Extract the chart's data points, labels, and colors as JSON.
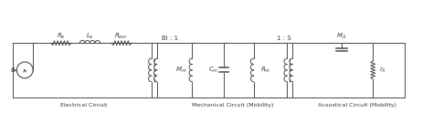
{
  "bg_color": "#ffffff",
  "line_color": "#4a4a4a",
  "text_color": "#3a3a3a",
  "labels": {
    "Re": "$R_e$",
    "Le": "$L_e$",
    "Rexc": "$R_{exc}$",
    "Bl1": "Bl : 1",
    "1S": "1 : S",
    "MA": "$M_A$",
    "Mm": "$M_m$",
    "Cm": "$C_m$",
    "Rm": "$R_m$",
    "rA": "$r_A$",
    "e": "e",
    "elec": "Electrical Circuit",
    "mech": "Mechanical Circuit (Mobility)",
    "acou": "Acoustical Circuit (Mobility)"
  },
  "figsize": [
    4.74,
    1.35
  ],
  "dpi": 100
}
